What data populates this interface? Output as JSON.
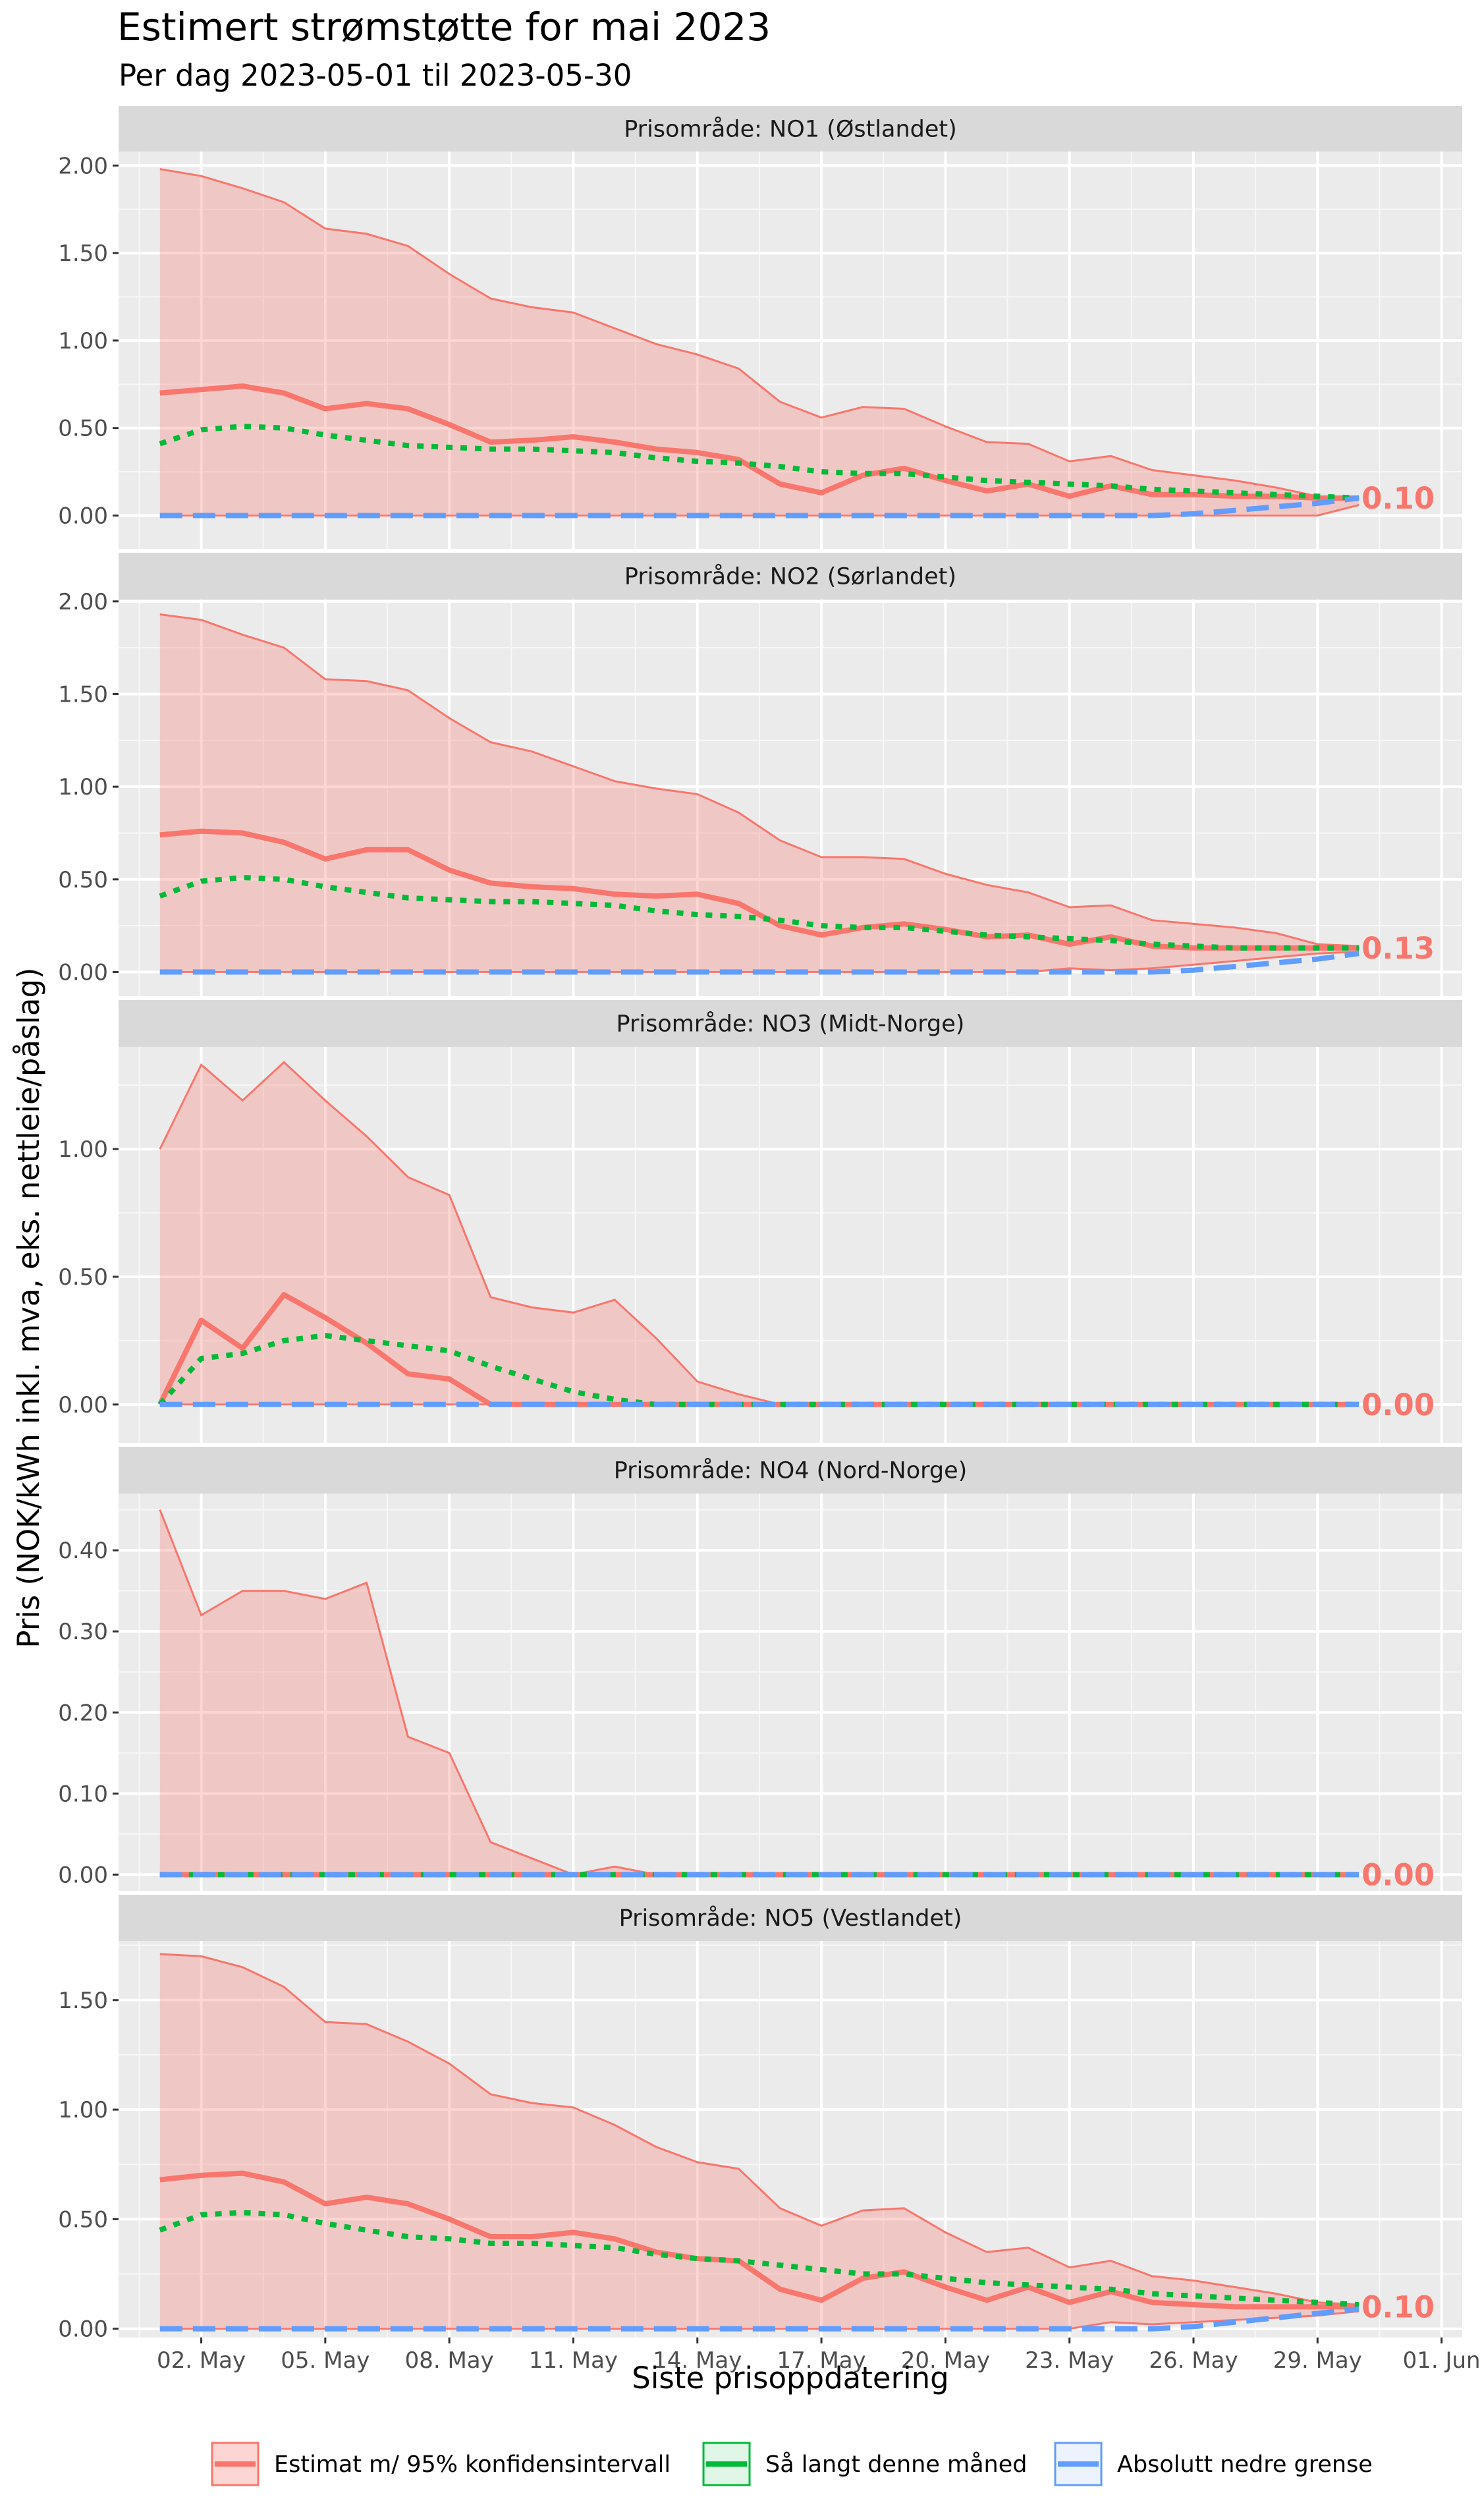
{
  "chart_data": {
    "type": "line",
    "title": "Estimert strømstøtte for mai 2023",
    "subtitle": "Per dag 2023-05-01 til 2023-05-30",
    "xlabel": "Siste prisoppdatering",
    "ylabel": "Pris (NOK/kWh inkl. mva, eks. nettleie/påslag)",
    "x_ticks": [
      "02. May",
      "05. May",
      "08. May",
      "11. May",
      "14. May",
      "17. May",
      "20. May",
      "23. May",
      "26. May",
      "29. May",
      "01. Jun"
    ],
    "x_tick_days": [
      2,
      5,
      8,
      11,
      14,
      17,
      20,
      23,
      26,
      29,
      32
    ],
    "xlim": [
      0,
      32.5
    ],
    "legend": {
      "position": "bottom",
      "items": [
        {
          "label": "Estimat m/ 95% konfidensintervall",
          "color": "#F8766D",
          "style": "solid"
        },
        {
          "label": "Så langt denne måned",
          "color": "#00BA38",
          "style": "dotted"
        },
        {
          "label": "Absolutt nedre grense",
          "color": "#619CFF",
          "style": "dashed"
        }
      ]
    },
    "days": [
      1,
      2,
      3,
      4,
      5,
      6,
      7,
      8,
      9,
      10,
      11,
      12,
      13,
      14,
      15,
      16,
      17,
      18,
      19,
      20,
      21,
      22,
      23,
      24,
      25,
      26,
      27,
      28,
      29,
      30
    ],
    "panels": [
      {
        "strip": "Prisområde: NO1 (Østlandet)",
        "ylim": [
          -0.19,
          2.08
        ],
        "yticks": [
          0.0,
          0.5,
          1.0,
          1.5,
          2.0
        ],
        "ytick_labels": [
          "0.00",
          "0.50",
          "1.00",
          "1.50",
          "2.00"
        ],
        "end_label": "0.10",
        "upper": [
          1.98,
          1.94,
          1.87,
          1.79,
          1.64,
          1.61,
          1.54,
          1.38,
          1.24,
          1.19,
          1.16,
          1.07,
          0.98,
          0.92,
          0.84,
          0.65,
          0.56,
          0.62,
          0.61,
          0.51,
          0.42,
          0.41,
          0.31,
          0.34,
          0.26,
          0.23,
          0.2,
          0.16,
          0.11,
          0.1
        ],
        "estimate": [
          0.7,
          0.72,
          0.74,
          0.7,
          0.61,
          0.64,
          0.61,
          0.52,
          0.42,
          0.43,
          0.45,
          0.42,
          0.38,
          0.36,
          0.32,
          0.18,
          0.13,
          0.23,
          0.27,
          0.2,
          0.14,
          0.18,
          0.11,
          0.17,
          0.12,
          0.12,
          0.11,
          0.11,
          0.1,
          0.1
        ],
        "lower": [
          0,
          0,
          0,
          0,
          0,
          0,
          0,
          0,
          0,
          0,
          0,
          0,
          0,
          0,
          0,
          0,
          0,
          0,
          0,
          0,
          0,
          0,
          0,
          0,
          0,
          0,
          0,
          0,
          0,
          0.06
        ],
        "so_far": [
          0.41,
          0.49,
          0.51,
          0.5,
          0.46,
          0.43,
          0.4,
          0.39,
          0.38,
          0.38,
          0.37,
          0.36,
          0.33,
          0.31,
          0.3,
          0.28,
          0.25,
          0.24,
          0.24,
          0.22,
          0.2,
          0.19,
          0.18,
          0.17,
          0.15,
          0.14,
          0.13,
          0.12,
          0.11,
          0.1
        ],
        "lower_bound": [
          0,
          0,
          0,
          0,
          0,
          0,
          0,
          0,
          0,
          0,
          0,
          0,
          0,
          0,
          0,
          0,
          0,
          0,
          0,
          0,
          0,
          0,
          0,
          0,
          0,
          0.01,
          0.03,
          0.05,
          0.07,
          0.1
        ]
      },
      {
        "strip": "Prisområde: NO2 (Sørlandet)",
        "ylim": [
          -0.13,
          2.01
        ],
        "yticks": [
          0.0,
          0.5,
          1.0,
          1.5,
          2.0
        ],
        "ytick_labels": [
          "0.00",
          "0.50",
          "1.00",
          "1.50",
          "2.00"
        ],
        "end_label": "0.13",
        "upper": [
          1.93,
          1.9,
          1.82,
          1.75,
          1.58,
          1.57,
          1.52,
          1.37,
          1.24,
          1.19,
          1.11,
          1.03,
          0.99,
          0.96,
          0.86,
          0.71,
          0.62,
          0.62,
          0.61,
          0.53,
          0.47,
          0.43,
          0.35,
          0.36,
          0.28,
          0.26,
          0.24,
          0.21,
          0.15,
          0.14
        ],
        "estimate": [
          0.74,
          0.76,
          0.75,
          0.7,
          0.61,
          0.66,
          0.66,
          0.55,
          0.48,
          0.46,
          0.45,
          0.42,
          0.41,
          0.42,
          0.37,
          0.25,
          0.2,
          0.24,
          0.26,
          0.23,
          0.19,
          0.2,
          0.15,
          0.19,
          0.14,
          0.13,
          0.13,
          0.13,
          0.13,
          0.13
        ],
        "lower": [
          0,
          0,
          0,
          0,
          0,
          0,
          0,
          0,
          0,
          0,
          0,
          0,
          0,
          0,
          0,
          0,
          0,
          0,
          0,
          0,
          0,
          0,
          0.02,
          0.01,
          0.02,
          0.04,
          0.06,
          0.08,
          0.1,
          0.11
        ],
        "so_far": [
          0.41,
          0.49,
          0.51,
          0.5,
          0.46,
          0.43,
          0.4,
          0.39,
          0.38,
          0.38,
          0.37,
          0.36,
          0.33,
          0.31,
          0.3,
          0.28,
          0.25,
          0.24,
          0.24,
          0.22,
          0.2,
          0.19,
          0.18,
          0.17,
          0.15,
          0.14,
          0.13,
          0.13,
          0.13,
          0.13
        ],
        "lower_bound": [
          0,
          0,
          0,
          0,
          0,
          0,
          0,
          0,
          0,
          0,
          0,
          0,
          0,
          0,
          0,
          0,
          0,
          0,
          0,
          0,
          0,
          0,
          0,
          0,
          0,
          0.01,
          0.03,
          0.05,
          0.07,
          0.1
        ]
      },
      {
        "strip": "Prisområde: NO3 (Midt-Norge)",
        "ylim": [
          -0.15,
          1.4
        ],
        "yticks": [
          0.0,
          0.5,
          1.0
        ],
        "ytick_labels": [
          "0.00",
          "0.50",
          "1.00"
        ],
        "end_label": "0.00",
        "upper": [
          1.0,
          1.33,
          1.19,
          1.34,
          1.19,
          1.05,
          0.89,
          0.82,
          0.42,
          0.38,
          0.36,
          0.41,
          0.26,
          0.09,
          0.04,
          0,
          0,
          0,
          0,
          0,
          0,
          0,
          0,
          0,
          0,
          0,
          0,
          0,
          0,
          0
        ],
        "estimate": [
          0,
          0.33,
          0.22,
          0.43,
          0.34,
          0.24,
          0.12,
          0.1,
          0,
          0,
          0,
          0,
          0,
          0,
          0,
          0,
          0,
          0,
          0,
          0,
          0,
          0,
          0,
          0,
          0,
          0,
          0,
          0,
          0,
          0
        ],
        "lower": [
          0,
          0,
          0,
          0,
          0,
          0,
          0,
          0,
          0,
          0,
          0,
          0,
          0,
          0,
          0,
          0,
          0,
          0,
          0,
          0,
          0,
          0,
          0,
          0,
          0,
          0,
          0,
          0,
          0,
          0
        ],
        "so_far": [
          0,
          0.18,
          0.2,
          0.25,
          0.27,
          0.25,
          0.23,
          0.21,
          0.15,
          0.1,
          0.05,
          0.02,
          0,
          0,
          0,
          0,
          0,
          0,
          0,
          0,
          0,
          0,
          0,
          0,
          0,
          0,
          0,
          0,
          0,
          0
        ],
        "lower_bound": [
          0,
          0,
          0,
          0,
          0,
          0,
          0,
          0,
          0,
          0,
          0,
          0,
          0,
          0,
          0,
          0,
          0,
          0,
          0,
          0,
          0,
          0,
          0,
          0,
          0,
          0,
          0,
          0,
          0,
          0
        ]
      },
      {
        "strip": "Prisområde: NO4 (Nord-Norge)",
        "ylim": [
          -0.02,
          0.47
        ],
        "yticks": [
          0.0,
          0.1,
          0.2,
          0.3,
          0.4
        ],
        "ytick_labels": [
          "0.00",
          "0.10",
          "0.20",
          "0.30",
          "0.40"
        ],
        "end_label": "0.00",
        "upper": [
          0.45,
          0.32,
          0.35,
          0.35,
          0.34,
          0.36,
          0.17,
          0.15,
          0.04,
          0.02,
          0,
          0.01,
          0,
          0,
          0,
          0,
          0,
          0,
          0,
          0,
          0,
          0,
          0,
          0,
          0,
          0,
          0,
          0,
          0,
          0
        ],
        "estimate": [
          0,
          0,
          0,
          0,
          0,
          0,
          0,
          0,
          0,
          0,
          0,
          0,
          0,
          0,
          0,
          0,
          0,
          0,
          0,
          0,
          0,
          0,
          0,
          0,
          0,
          0,
          0,
          0,
          0,
          0
        ],
        "lower": [
          0,
          0,
          0,
          0,
          0,
          0,
          0,
          0,
          0,
          0,
          0,
          0,
          0,
          0,
          0,
          0,
          0,
          0,
          0,
          0,
          0,
          0,
          0,
          0,
          0,
          0,
          0,
          0,
          0,
          0
        ],
        "so_far": [
          0,
          0,
          0,
          0,
          0,
          0,
          0,
          0,
          0,
          0,
          0,
          0,
          0,
          0,
          0,
          0,
          0,
          0,
          0,
          0,
          0,
          0,
          0,
          0,
          0,
          0,
          0,
          0,
          0,
          0
        ],
        "lower_bound": [
          0,
          0,
          0,
          0,
          0,
          0,
          0,
          0,
          0,
          0,
          0,
          0,
          0,
          0,
          0,
          0,
          0,
          0,
          0,
          0,
          0,
          0,
          0,
          0,
          0,
          0,
          0,
          0,
          0,
          0
        ]
      },
      {
        "strip": "Prisområde: NO5 (Vestlandet)",
        "ylim": [
          -0.04,
          1.77
        ],
        "yticks": [
          0.0,
          0.5,
          1.0,
          1.5
        ],
        "ytick_labels": [
          "0.00",
          "0.50",
          "1.00",
          "1.50"
        ],
        "end_label": "0.10",
        "upper": [
          1.71,
          1.7,
          1.65,
          1.56,
          1.4,
          1.39,
          1.31,
          1.21,
          1.07,
          1.03,
          1.01,
          0.93,
          0.83,
          0.76,
          0.73,
          0.55,
          0.47,
          0.54,
          0.55,
          0.44,
          0.35,
          0.37,
          0.28,
          0.31,
          0.24,
          0.22,
          0.19,
          0.16,
          0.12,
          0.11
        ],
        "estimate": [
          0.68,
          0.7,
          0.71,
          0.67,
          0.57,
          0.6,
          0.57,
          0.5,
          0.42,
          0.42,
          0.44,
          0.41,
          0.35,
          0.32,
          0.31,
          0.18,
          0.13,
          0.23,
          0.26,
          0.19,
          0.13,
          0.19,
          0.12,
          0.17,
          0.12,
          0.11,
          0.1,
          0.1,
          0.1,
          0.1
        ],
        "lower": [
          0,
          0,
          0,
          0,
          0,
          0,
          0,
          0,
          0,
          0,
          0,
          0,
          0,
          0,
          0,
          0,
          0,
          0,
          0,
          0,
          0,
          0,
          0,
          0.03,
          0.02,
          0.03,
          0.04,
          0.05,
          0.06,
          0.08
        ],
        "so_far": [
          0.45,
          0.52,
          0.53,
          0.52,
          0.48,
          0.45,
          0.42,
          0.41,
          0.39,
          0.39,
          0.38,
          0.37,
          0.34,
          0.32,
          0.31,
          0.29,
          0.27,
          0.25,
          0.25,
          0.23,
          0.21,
          0.2,
          0.19,
          0.18,
          0.16,
          0.15,
          0.14,
          0.13,
          0.12,
          0.11
        ],
        "lower_bound": [
          0,
          0,
          0,
          0,
          0,
          0,
          0,
          0,
          0,
          0,
          0,
          0,
          0,
          0,
          0,
          0,
          0,
          0,
          0,
          0,
          0,
          0,
          0,
          0,
          0,
          0.01,
          0.03,
          0.05,
          0.07,
          0.09
        ]
      }
    ]
  }
}
